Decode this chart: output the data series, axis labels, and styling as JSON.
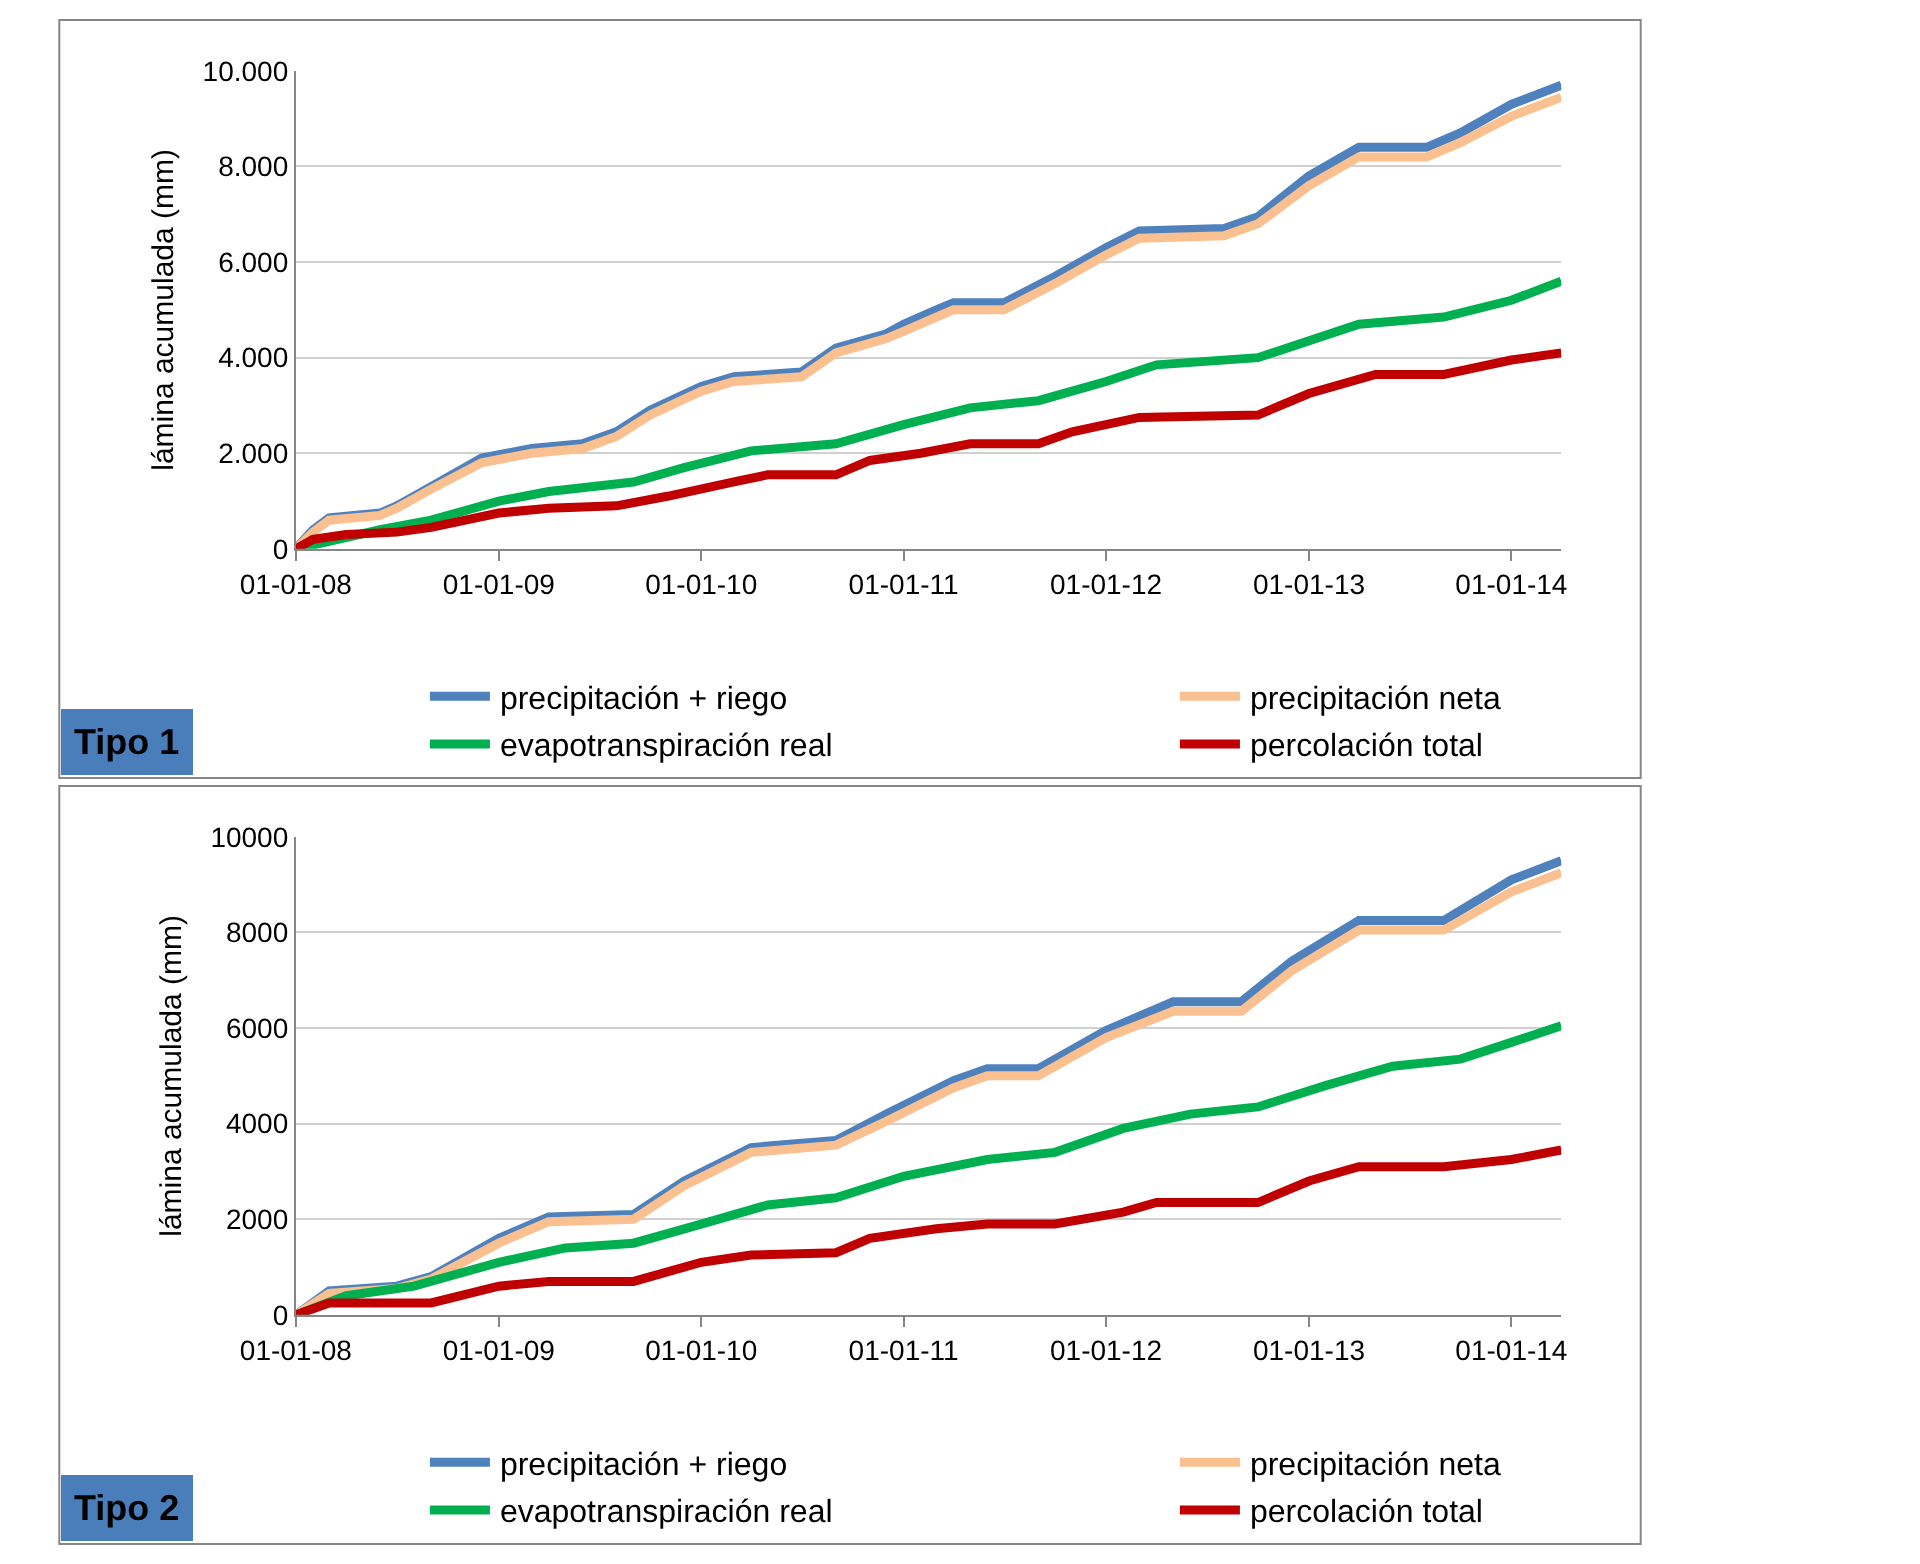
{
  "chart_data": [
    {
      "type": "line",
      "ylabel": "lámina acumulada (mm)",
      "annotations": [
        "Tipo 1"
      ],
      "legend": "bottom",
      "grid": "y",
      "marker": "none",
      "line_style": "solid",
      "xlim": [
        "2008-01-01",
        "2014-04-01"
      ],
      "xticks": [
        {
          "value": "2008-01-01",
          "label": "01-01-08"
        },
        {
          "value": "2009-01-01",
          "label": "01-01-09"
        },
        {
          "value": "2010-01-01",
          "label": "01-01-10"
        },
        {
          "value": "2011-01-01",
          "label": "01-01-11"
        },
        {
          "value": "2012-01-01",
          "label": "01-01-12"
        },
        {
          "value": "2013-01-01",
          "label": "01-01-13"
        },
        {
          "value": "2014-01-01",
          "label": "01-01-14"
        }
      ],
      "ylim": [
        0,
        10000
      ],
      "yticks": [
        0,
        {
          "value": 2000,
          "label": "2.000"
        },
        {
          "value": 4000,
          "label": "4.000"
        },
        {
          "value": 6000,
          "label": "6.000"
        },
        {
          "value": 8000,
          "label": "8.000"
        },
        {
          "value": 10000,
          "label": "10.000"
        }
      ],
      "series": [
        {
          "name": "precipitación + riego",
          "color": "#4f81bd",
          "x": [
            "2008-01-01",
            "2008-02-01",
            "2008-03-01",
            "2008-06-01",
            "2008-07-01",
            "2008-09-01",
            "2008-12-01",
            "2009-03-01",
            "2009-06-01",
            "2009-08-01",
            "2009-10-01",
            "2010-01-01",
            "2010-03-01",
            "2010-07-01",
            "2010-09-01",
            "2010-12-01",
            "2011-01-01",
            "2011-03-01",
            "2011-04-01",
            "2011-07-01",
            "2011-10-01",
            "2012-01-01",
            "2012-03-01",
            "2012-08-01",
            "2012-10-01",
            "2013-01-01",
            "2013-04-01",
            "2013-08-01",
            "2013-10-01",
            "2014-01-01",
            "2014-04-01"
          ],
          "values": [
            0,
            400,
            650,
            750,
            900,
            1300,
            1900,
            2100,
            2200,
            2450,
            2900,
            3400,
            3600,
            3700,
            4200,
            4500,
            4700,
            5000,
            5150,
            5150,
            5700,
            6300,
            6650,
            6700,
            6950,
            7800,
            8400,
            8400,
            8700,
            9300,
            9700
          ]
        },
        {
          "name": "precipitación neta",
          "color": "#fac090",
          "x": [
            "2008-01-01",
            "2008-02-01",
            "2008-03-01",
            "2008-06-01",
            "2008-07-01",
            "2008-09-01",
            "2008-12-01",
            "2009-03-01",
            "2009-06-01",
            "2009-08-01",
            "2009-10-01",
            "2010-01-01",
            "2010-03-01",
            "2010-07-01",
            "2010-09-01",
            "2010-12-01",
            "2011-01-01",
            "2011-03-01",
            "2011-04-01",
            "2011-07-01",
            "2011-10-01",
            "2012-01-01",
            "2012-03-01",
            "2012-08-01",
            "2012-10-01",
            "2013-01-01",
            "2013-04-01",
            "2013-08-01",
            "2013-10-01",
            "2014-01-01",
            "2014-04-01"
          ],
          "values": [
            0,
            350,
            600,
            700,
            850,
            1250,
            1800,
            2000,
            2100,
            2350,
            2800,
            3300,
            3500,
            3600,
            4100,
            4400,
            4550,
            4850,
            5000,
            5000,
            5550,
            6150,
            6500,
            6550,
            6800,
            7600,
            8200,
            8200,
            8500,
            9050,
            9450
          ]
        },
        {
          "name": "evapotranspiración real",
          "color": "#00b050",
          "x": [
            "2008-01-01",
            "2008-06-01",
            "2008-09-01",
            "2009-01-01",
            "2009-04-01",
            "2009-09-01",
            "2009-12-01",
            "2010-04-01",
            "2010-09-01",
            "2011-01-01",
            "2011-05-01",
            "2011-09-01",
            "2012-01-01",
            "2012-04-01",
            "2012-10-01",
            "2013-04-01",
            "2013-09-01",
            "2014-01-01",
            "2014-04-01"
          ],
          "values": [
            0,
            400,
            600,
            1000,
            1200,
            1400,
            1700,
            2050,
            2200,
            2600,
            2950,
            3100,
            3500,
            3850,
            4000,
            4700,
            4850,
            5200,
            5600
          ]
        },
        {
          "name": "percolación total",
          "color": "#c00000",
          "x": [
            "2008-01-01",
            "2008-02-01",
            "2008-04-01",
            "2008-07-01",
            "2008-09-01",
            "2009-01-01",
            "2009-04-01",
            "2009-08-01",
            "2009-11-01",
            "2010-03-01",
            "2010-05-01",
            "2010-09-01",
            "2010-11-01",
            "2011-02-01",
            "2011-05-01",
            "2011-09-01",
            "2011-11-01",
            "2012-03-01",
            "2012-10-01",
            "2013-01-01",
            "2013-05-01",
            "2013-09-01",
            "2014-01-01",
            "2014-04-01"
          ],
          "values": [
            0,
            200,
            300,
            350,
            450,
            750,
            850,
            900,
            1100,
            1400,
            1550,
            1550,
            1850,
            2000,
            2200,
            2200,
            2450,
            2750,
            2800,
            3250,
            3650,
            3650,
            3950,
            4100
          ]
        }
      ]
    },
    {
      "type": "line",
      "ylabel": "lámina acumulada (mm)",
      "annotations": [
        "Tipo 2"
      ],
      "legend": "bottom",
      "grid": "y",
      "marker": "none",
      "line_style": "solid",
      "xlim": [
        "2008-01-01",
        "2014-04-01"
      ],
      "xticks": [
        {
          "value": "2008-01-01",
          "label": "01-01-08"
        },
        {
          "value": "2009-01-01",
          "label": "01-01-09"
        },
        {
          "value": "2010-01-01",
          "label": "01-01-10"
        },
        {
          "value": "2011-01-01",
          "label": "01-01-11"
        },
        {
          "value": "2012-01-01",
          "label": "01-01-12"
        },
        {
          "value": "2013-01-01",
          "label": "01-01-13"
        },
        {
          "value": "2014-01-01",
          "label": "01-01-14"
        }
      ],
      "ylim": [
        0,
        10000
      ],
      "yticks": [
        0,
        2000,
        4000,
        6000,
        8000,
        10000
      ],
      "series": [
        {
          "name": "precipitación + riego",
          "color": "#4f81bd",
          "x": [
            "2008-01-01",
            "2008-03-01",
            "2008-07-01",
            "2008-09-01",
            "2009-01-01",
            "2009-04-01",
            "2009-09-01",
            "2009-12-01",
            "2010-04-01",
            "2010-09-01",
            "2010-12-01",
            "2011-04-01",
            "2011-06-01",
            "2011-09-01",
            "2012-01-01",
            "2012-05-01",
            "2012-09-01",
            "2012-12-01",
            "2013-04-01",
            "2013-09-01",
            "2014-01-01",
            "2014-04-01"
          ],
          "values": [
            0,
            500,
            600,
            800,
            1600,
            2050,
            2100,
            2800,
            3500,
            3650,
            4200,
            4900,
            5150,
            5150,
            5950,
            6550,
            6550,
            7400,
            8250,
            8250,
            9100,
            9500
          ]
        },
        {
          "name": "precipitación neta",
          "color": "#fac090",
          "x": [
            "2008-01-01",
            "2008-03-01",
            "2008-07-01",
            "2008-09-01",
            "2009-01-01",
            "2009-04-01",
            "2009-09-01",
            "2009-12-01",
            "2010-04-01",
            "2010-09-01",
            "2010-12-01",
            "2011-04-01",
            "2011-06-01",
            "2011-09-01",
            "2012-01-01",
            "2012-05-01",
            "2012-09-01",
            "2012-12-01",
            "2013-04-01",
            "2013-09-01",
            "2014-01-01",
            "2014-04-01"
          ],
          "values": [
            0,
            450,
            550,
            750,
            1500,
            1950,
            2000,
            2700,
            3400,
            3550,
            4050,
            4750,
            5000,
            5000,
            5800,
            6350,
            6350,
            7200,
            8050,
            8050,
            8850,
            9250
          ]
        },
        {
          "name": "evapotranspiración real",
          "color": "#00b050",
          "x": [
            "2008-01-01",
            "2008-04-01",
            "2008-08-01",
            "2009-01-01",
            "2009-05-01",
            "2009-09-01",
            "2010-01-01",
            "2010-05-01",
            "2010-09-01",
            "2011-01-01",
            "2011-06-01",
            "2011-10-01",
            "2012-02-01",
            "2012-06-01",
            "2012-10-01",
            "2013-02-01",
            "2013-06-01",
            "2013-10-01",
            "2014-01-01",
            "2014-04-01"
          ],
          "values": [
            0,
            400,
            600,
            1100,
            1400,
            1500,
            1900,
            2300,
            2450,
            2900,
            3250,
            3400,
            3900,
            4200,
            4350,
            4800,
            5200,
            5350,
            5700,
            6050
          ]
        },
        {
          "name": "percolación total",
          "color": "#c00000",
          "x": [
            "2008-01-01",
            "2008-03-01",
            "2008-09-01",
            "2009-01-01",
            "2009-04-01",
            "2009-09-01",
            "2010-01-01",
            "2010-04-01",
            "2010-09-01",
            "2010-11-01",
            "2011-03-01",
            "2011-06-01",
            "2011-10-01",
            "2012-02-01",
            "2012-04-01",
            "2012-10-01",
            "2013-01-01",
            "2013-04-01",
            "2013-09-01",
            "2014-01-01",
            "2014-04-01"
          ],
          "values": [
            0,
            250,
            250,
            600,
            700,
            700,
            1100,
            1250,
            1300,
            1600,
            1800,
            1900,
            1900,
            2150,
            2350,
            2350,
            2800,
            3100,
            3100,
            3250,
            3450
          ]
        }
      ]
    }
  ]
}
